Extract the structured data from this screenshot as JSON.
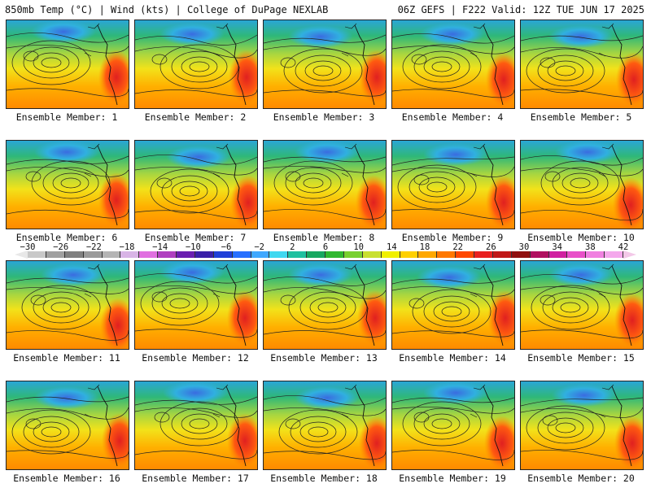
{
  "header": {
    "left_text": "850mb Temp (°C) | Wind (kts) | College of DuPage NEXLAB",
    "right_text": "06Z GEFS | F222 Valid: 12Z TUE JUN 17 2025"
  },
  "colorbar": {
    "labels": [
      "−30",
      "−26",
      "−22",
      "−18",
      "−14",
      "−10",
      "−6",
      "−2",
      "2",
      "6",
      "10",
      "14",
      "18",
      "22",
      "26",
      "30",
      "34",
      "38",
      "42"
    ],
    "colors": [
      "#c8c8c8",
      "#a0a0a0",
      "#808080",
      "#9a9a9a",
      "#b4b4b4",
      "#d8b4e6",
      "#e070e0",
      "#b040c0",
      "#6a1fb0",
      "#3a20a8",
      "#2040d8",
      "#2870ff",
      "#40a8ff",
      "#40d8f0",
      "#20c0a0",
      "#18a860",
      "#30b830",
      "#78d030",
      "#c8e030",
      "#f0f000",
      "#ffd000",
      "#ffa800",
      "#ff7800",
      "#ff4800",
      "#e82020",
      "#c01818",
      "#901010",
      "#b01060",
      "#d020a0",
      "#e850c8",
      "#f080e0",
      "#f4a8ec"
    ]
  },
  "panels": [
    {
      "label": "Ensemble Member: 1"
    },
    {
      "label": "Ensemble Member: 2"
    },
    {
      "label": "Ensemble Member: 3"
    },
    {
      "label": "Ensemble Member: 4"
    },
    {
      "label": "Ensemble Member: 5"
    },
    {
      "label": "Ensemble Member: 6"
    },
    {
      "label": "Ensemble Member: 7"
    },
    {
      "label": "Ensemble Member: 8"
    },
    {
      "label": "Ensemble Member: 9"
    },
    {
      "label": "Ensemble Member: 10"
    },
    {
      "label": "Ensemble Member: 11"
    },
    {
      "label": "Ensemble Member: 12"
    },
    {
      "label": "Ensemble Member: 13"
    },
    {
      "label": "Ensemble Member: 14"
    },
    {
      "label": "Ensemble Member: 15"
    },
    {
      "label": "Ensemble Member: 16"
    },
    {
      "label": "Ensemble Member: 17"
    },
    {
      "label": "Ensemble Member: 18"
    },
    {
      "label": "Ensemble Member: 19"
    },
    {
      "label": "Ensemble Member: 20"
    }
  ]
}
